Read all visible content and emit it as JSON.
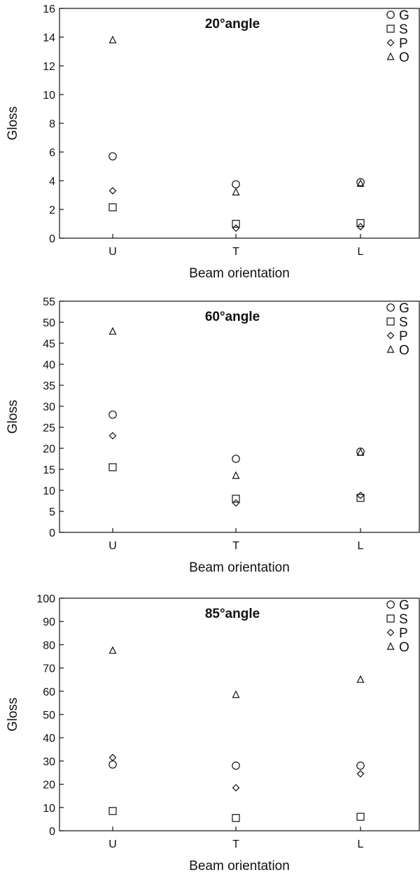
{
  "chart_data": [
    {
      "type": "scatter",
      "title": "20°angle",
      "xlabel": "Beam orientation",
      "ylabel": "Gloss",
      "categories": [
        "U",
        "T",
        "L"
      ],
      "ylim": [
        0,
        16
      ],
      "yticks": [
        0,
        2,
        4,
        6,
        8,
        10,
        12,
        14,
        16
      ],
      "grid": false,
      "legend_position": "top-right",
      "series": [
        {
          "name": "G",
          "marker": "circle",
          "values": [
            5.7,
            3.75,
            3.9
          ]
        },
        {
          "name": "S",
          "marker": "square",
          "values": [
            2.15,
            1.0,
            1.05
          ]
        },
        {
          "name": "P",
          "marker": "diamond",
          "values": [
            3.3,
            0.7,
            0.8
          ]
        },
        {
          "name": "O",
          "marker": "triangle",
          "values": [
            13.8,
            3.2,
            3.8
          ]
        }
      ]
    },
    {
      "type": "scatter",
      "title": "60°angle",
      "xlabel": "Beam orientation",
      "ylabel": "Gloss",
      "categories": [
        "U",
        "T",
        "L"
      ],
      "ylim": [
        0,
        55
      ],
      "yticks": [
        0,
        5,
        10,
        15,
        20,
        25,
        30,
        35,
        40,
        45,
        50,
        55
      ],
      "grid": false,
      "legend_position": "top-right",
      "series": [
        {
          "name": "G",
          "marker": "circle",
          "values": [
            28,
            17.5,
            19.2
          ]
        },
        {
          "name": "S",
          "marker": "square",
          "values": [
            15.5,
            8.0,
            8.2
          ]
        },
        {
          "name": "P",
          "marker": "diamond",
          "values": [
            23,
            7.0,
            8.8
          ]
        },
        {
          "name": "O",
          "marker": "triangle",
          "values": [
            47.8,
            13.5,
            19.0
          ]
        }
      ]
    },
    {
      "type": "scatter",
      "title": "85°angle",
      "xlabel": "Beam orientation",
      "ylabel": "Gloss",
      "categories": [
        "U",
        "T",
        "L"
      ],
      "ylim": [
        0,
        100
      ],
      "yticks": [
        0,
        10,
        20,
        30,
        40,
        50,
        60,
        70,
        80,
        90,
        100
      ],
      "grid": false,
      "legend_position": "top-right",
      "series": [
        {
          "name": "G",
          "marker": "circle",
          "values": [
            28.5,
            28,
            28
          ]
        },
        {
          "name": "S",
          "marker": "square",
          "values": [
            8.5,
            5.5,
            6
          ]
        },
        {
          "name": "P",
          "marker": "diamond",
          "values": [
            31.5,
            18.5,
            24.5
          ]
        },
        {
          "name": "O",
          "marker": "triangle",
          "values": [
            77.5,
            58.5,
            65
          ]
        }
      ]
    }
  ]
}
